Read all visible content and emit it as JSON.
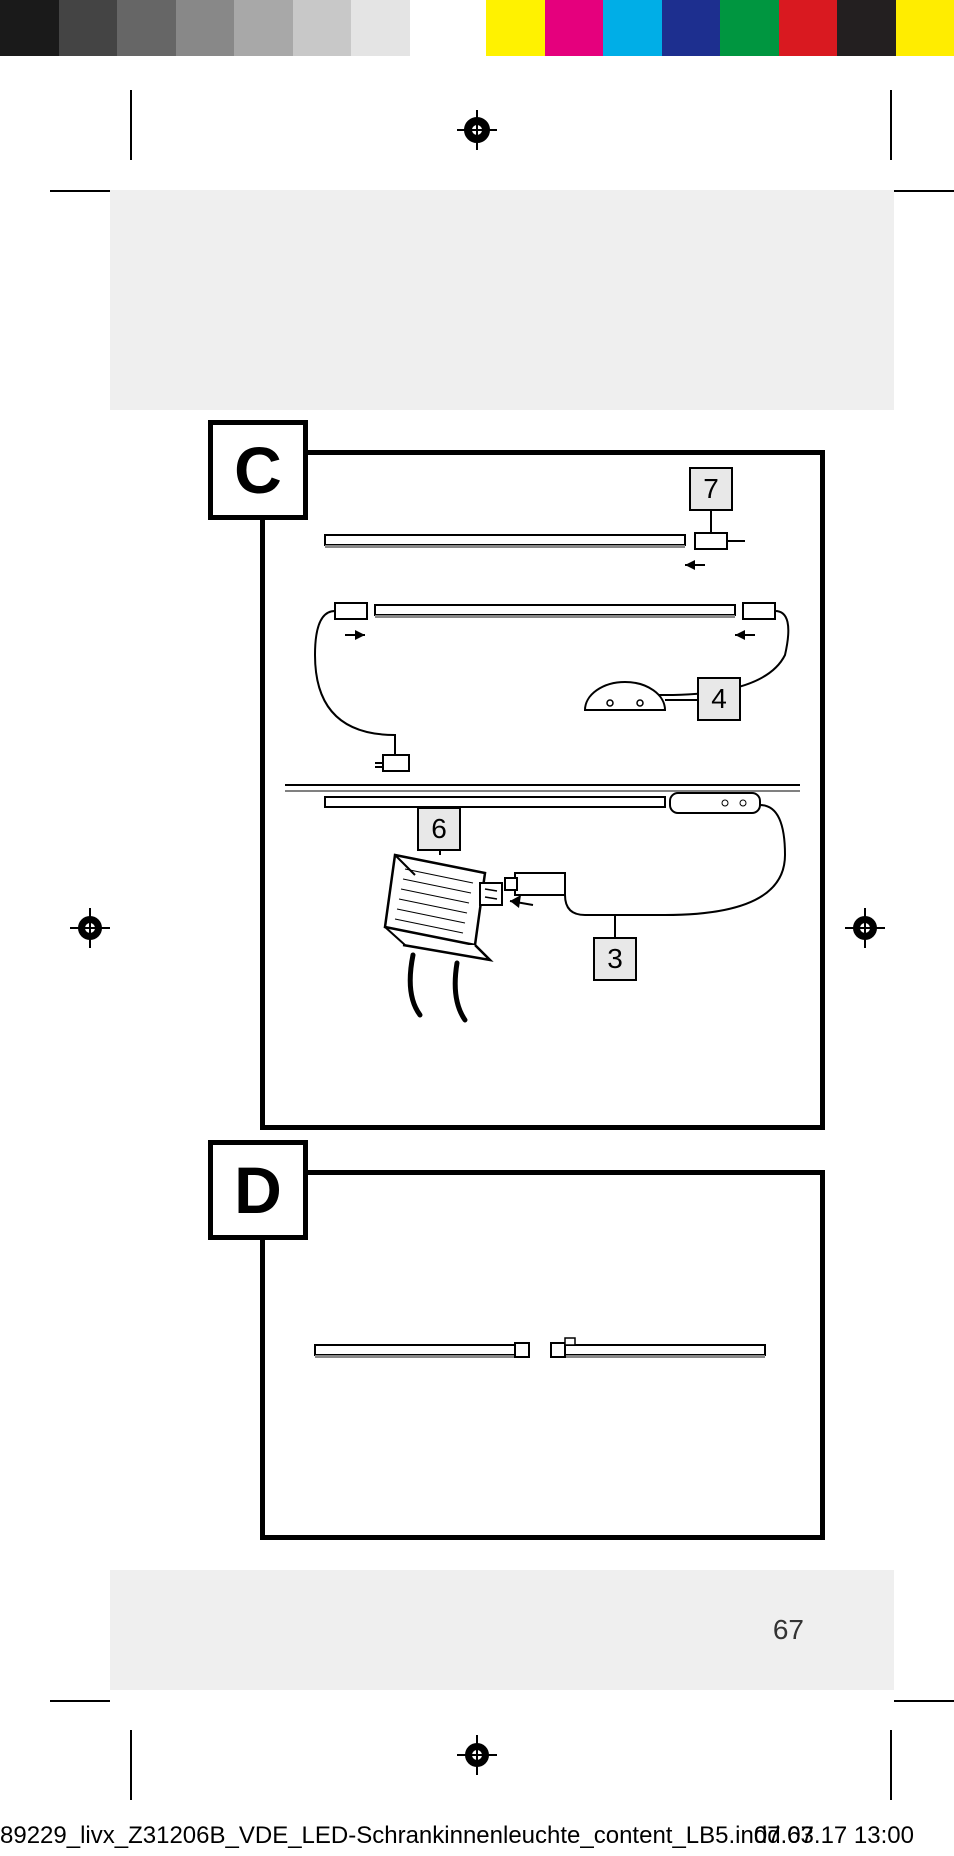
{
  "color_strip": {
    "gap_after": 7,
    "swatches": [
      "#1a1a1a",
      "#444444",
      "#666666",
      "#888888",
      "#a8a8a8",
      "#c8c8c8",
      "#e4e4e4",
      "#ffffff",
      "#fff200",
      "#e5007d",
      "#00aee7",
      "#1d2f8f",
      "#009640",
      "#d91920",
      "#231f20",
      "#ffed00"
    ]
  },
  "panels": {
    "c": {
      "label": "C"
    },
    "d": {
      "label": "D"
    }
  },
  "callouts": {
    "c7": "7",
    "c4": "4",
    "c6": "6",
    "c3": "3"
  },
  "page_number": "67",
  "footer_line_left": "89229_livx_Z31206B_VDE_LED-Schrankinnenleuchte_content_LB5.indd   67",
  "footer_line_right": "07.03.17   13:00",
  "reg_mark_color": "#000000",
  "crop_color": "#000000"
}
